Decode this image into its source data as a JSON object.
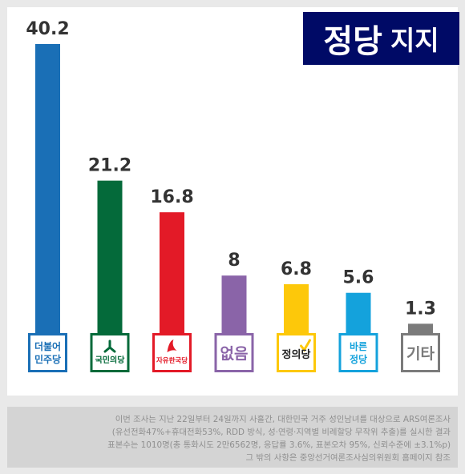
{
  "title": {
    "main": "정당",
    "sub": "지지"
  },
  "chart_data": {
    "type": "bar",
    "categories": [
      "더불어민주당",
      "국민의당",
      "자유한국당",
      "없음",
      "정의당",
      "바른정당",
      "기타"
    ],
    "values": [
      40.2,
      21.2,
      16.8,
      8,
      6.8,
      5.6,
      1.3
    ],
    "value_labels": [
      "40.2",
      "21.2",
      "16.8",
      "8",
      "6.8",
      "5.6",
      "1.3"
    ],
    "logo_lines": [
      [
        "더불어",
        "민주당"
      ],
      [
        "국민의당"
      ],
      [
        "자유한국당"
      ],
      [
        "없음"
      ],
      [
        "정의당"
      ],
      [
        "바른",
        "정당"
      ],
      [
        "기타"
      ]
    ],
    "colors": [
      "#1a6fb6",
      "#046a3a",
      "#e31a27",
      "#8a64a8",
      "#fdc80a",
      "#14a2dc",
      "#7b7b7b"
    ],
    "title": "정당 지지",
    "xlabel": "",
    "ylabel": "",
    "ylim": [
      0,
      40.2
    ],
    "grid": false,
    "legend": "none"
  },
  "footer": {
    "lines": [
      "이번 조사는 지난 22일부터 24일까지 사흘간, 대한민국 거주 성인남녀를 대상으로 ARS여론조사",
      "(유선전화47%+휴대전화53%, RDD 방식, 성·연령·지역별 비례할당 무작위 추출)를 실시한 결과",
      "표본수는 1010명(총 통화시도 2만6562명, 응답률 3.6%, 표본오차 95%, 신뢰수준에 ±3.1%p)",
      "그 밖의 사항은 중앙선거여론조사심의위원회 홈페이지 참조"
    ]
  }
}
